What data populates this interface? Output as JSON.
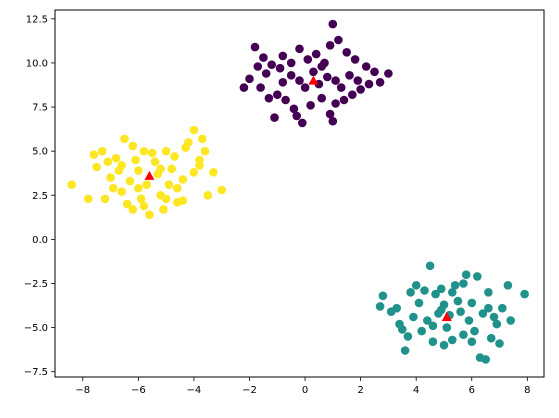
{
  "chart_data": {
    "type": "scatter",
    "title": "",
    "xlabel": "",
    "ylabel": "",
    "xlim": [
      -9.0,
      8.6
    ],
    "ylim": [
      -7.8,
      13.0
    ],
    "x_ticks": [
      -8,
      -6,
      -4,
      -2,
      0,
      2,
      4,
      6,
      8
    ],
    "x_tick_labels": [
      "−8",
      "−6",
      "−4",
      "−2",
      "0",
      "2",
      "4",
      "6",
      "8"
    ],
    "y_ticks": [
      -7.5,
      -5.0,
      -2.5,
      0.0,
      2.5,
      5.0,
      7.5,
      10.0,
      12.5
    ],
    "y_tick_labels": [
      "−7.5",
      "−5.0",
      "−2.5",
      "0.0",
      "2.5",
      "5.0",
      "7.5",
      "10.0",
      "12.5"
    ],
    "grid": false,
    "legend": "none",
    "clusters": [
      {
        "color": "#440154",
        "center": [
          0.3,
          9.0
        ],
        "center_color": "#ff0000",
        "center_marker": "triangle",
        "points": [
          [
            -1.8,
            10.9
          ],
          [
            -1.5,
            10.3
          ],
          [
            -1.2,
            9.9
          ],
          [
            -0.8,
            10.4
          ],
          [
            -0.5,
            10.0
          ],
          [
            -0.2,
            10.8
          ],
          [
            0.1,
            10.2
          ],
          [
            0.4,
            10.5
          ],
          [
            0.7,
            10.0
          ],
          [
            1.0,
            12.2
          ],
          [
            1.2,
            11.3
          ],
          [
            1.5,
            10.6
          ],
          [
            1.8,
            10.2
          ],
          [
            2.2,
            9.8
          ],
          [
            2.5,
            9.5
          ],
          [
            3.0,
            9.4
          ],
          [
            2.3,
            8.8
          ],
          [
            2.0,
            8.5
          ],
          [
            1.7,
            8.2
          ],
          [
            1.4,
            7.9
          ],
          [
            1.1,
            7.7
          ],
          [
            0.9,
            7.1
          ],
          [
            0.6,
            8.0
          ],
          [
            0.2,
            7.6
          ],
          [
            -0.1,
            6.6
          ],
          [
            -0.4,
            7.4
          ],
          [
            -0.7,
            7.9
          ],
          [
            -1.0,
            8.2
          ],
          [
            -1.3,
            8.0
          ],
          [
            -1.6,
            8.6
          ],
          [
            -2.0,
            9.1
          ],
          [
            -2.2,
            8.6
          ],
          [
            -1.1,
            6.9
          ],
          [
            -0.8,
            8.9
          ],
          [
            -0.5,
            9.3
          ],
          [
            -0.2,
            9.0
          ],
          [
            0.0,
            8.6
          ],
          [
            0.3,
            9.5
          ],
          [
            0.5,
            8.8
          ],
          [
            0.8,
            9.2
          ],
          [
            1.1,
            9.0
          ],
          [
            1.3,
            8.6
          ],
          [
            1.6,
            9.3
          ],
          [
            1.9,
            9.0
          ],
          [
            -1.4,
            9.4
          ],
          [
            -0.9,
            9.7
          ],
          [
            0.6,
            9.8
          ],
          [
            1.0,
            6.7
          ],
          [
            -1.7,
            9.8
          ],
          [
            0.9,
            11.0
          ],
          [
            2.7,
            8.9
          ],
          [
            -0.3,
            7.0
          ]
        ]
      },
      {
        "color": "#21918c",
        "center": [
          5.1,
          -4.4
        ],
        "center_color": "#ff0000",
        "center_marker": "triangle",
        "points": [
          [
            2.8,
            -3.2
          ],
          [
            2.7,
            -3.8
          ],
          [
            3.1,
            -4.1
          ],
          [
            3.4,
            -4.8
          ],
          [
            3.7,
            -5.5
          ],
          [
            3.6,
            -6.3
          ],
          [
            3.9,
            -4.4
          ],
          [
            4.1,
            -3.6
          ],
          [
            4.3,
            -2.9
          ],
          [
            4.5,
            -1.5
          ],
          [
            4.7,
            -3.1
          ],
          [
            4.9,
            -4.0
          ],
          [
            5.1,
            -5.0
          ],
          [
            5.3,
            -5.7
          ],
          [
            5.5,
            -3.5
          ],
          [
            5.7,
            -2.5
          ],
          [
            5.9,
            -4.6
          ],
          [
            6.1,
            -5.2
          ],
          [
            6.3,
            -6.7
          ],
          [
            6.5,
            -6.8
          ],
          [
            6.7,
            -5.6
          ],
          [
            6.9,
            -4.8
          ],
          [
            7.1,
            -3.9
          ],
          [
            7.3,
            -2.6
          ],
          [
            7.9,
            -3.1
          ],
          [
            6.6,
            -3.0
          ],
          [
            6.2,
            -2.1
          ],
          [
            5.8,
            -2.0
          ],
          [
            5.4,
            -2.6
          ],
          [
            4.0,
            -2.6
          ],
          [
            3.8,
            -3.0
          ],
          [
            4.4,
            -4.6
          ],
          [
            4.6,
            -4.9
          ],
          [
            4.8,
            -4.2
          ],
          [
            5.0,
            -3.7
          ],
          [
            5.2,
            -4.3
          ],
          [
            5.6,
            -4.1
          ],
          [
            6.0,
            -3.6
          ],
          [
            6.4,
            -4.2
          ],
          [
            6.8,
            -4.4
          ],
          [
            7.0,
            -5.9
          ],
          [
            4.2,
            -5.2
          ],
          [
            4.6,
            -5.8
          ],
          [
            5.0,
            -6.0
          ],
          [
            3.3,
            -3.9
          ],
          [
            7.4,
            -4.6
          ],
          [
            6.0,
            -5.8
          ],
          [
            5.3,
            -3.0
          ],
          [
            4.9,
            -2.8
          ],
          [
            3.5,
            -5.1
          ],
          [
            5.7,
            -5.4
          ],
          [
            6.6,
            -3.9
          ]
        ]
      },
      {
        "color": "#fde725",
        "center": [
          -5.6,
          3.6
        ],
        "center_color": "#ff0000",
        "center_marker": "triangle",
        "points": [
          [
            -8.4,
            3.1
          ],
          [
            -7.8,
            2.3
          ],
          [
            -7.5,
            4.1
          ],
          [
            -7.3,
            5.0
          ],
          [
            -7.0,
            3.5
          ],
          [
            -6.8,
            4.6
          ],
          [
            -6.6,
            2.7
          ],
          [
            -6.4,
            2.0
          ],
          [
            -6.2,
            5.3
          ],
          [
            -6.0,
            3.9
          ],
          [
            -5.8,
            1.9
          ],
          [
            -5.6,
            1.4
          ],
          [
            -5.4,
            4.4
          ],
          [
            -5.2,
            2.5
          ],
          [
            -5.0,
            5.0
          ],
          [
            -4.8,
            4.0
          ],
          [
            -4.6,
            2.9
          ],
          [
            -4.4,
            3.4
          ],
          [
            -4.2,
            5.5
          ],
          [
            -4.0,
            3.8
          ],
          [
            -3.8,
            4.2
          ],
          [
            -3.6,
            5.0
          ],
          [
            -3.3,
            3.8
          ],
          [
            -3.5,
            2.5
          ],
          [
            -3.8,
            4.5
          ],
          [
            -4.0,
            6.2
          ],
          [
            -4.3,
            5.2
          ],
          [
            -4.6,
            2.1
          ],
          [
            -4.9,
            3.1
          ],
          [
            -5.1,
            1.7
          ],
          [
            -5.3,
            3.7
          ],
          [
            -5.5,
            4.9
          ],
          [
            -5.7,
            3.1
          ],
          [
            -5.9,
            2.3
          ],
          [
            -6.1,
            4.5
          ],
          [
            -6.3,
            3.3
          ],
          [
            -6.5,
            5.7
          ],
          [
            -6.7,
            3.9
          ],
          [
            -6.9,
            2.9
          ],
          [
            -7.1,
            4.4
          ],
          [
            -7.2,
            2.3
          ],
          [
            -6.0,
            2.9
          ],
          [
            -5.2,
            4.0
          ],
          [
            -4.7,
            4.7
          ],
          [
            -6.6,
            4.2
          ],
          [
            -5.8,
            5.0
          ],
          [
            -4.4,
            2.2
          ],
          [
            -3.7,
            5.7
          ],
          [
            -3.0,
            2.8
          ],
          [
            -7.6,
            4.8
          ],
          [
            -6.2,
            1.7
          ],
          [
            -5.0,
            2.3
          ]
        ]
      }
    ]
  }
}
